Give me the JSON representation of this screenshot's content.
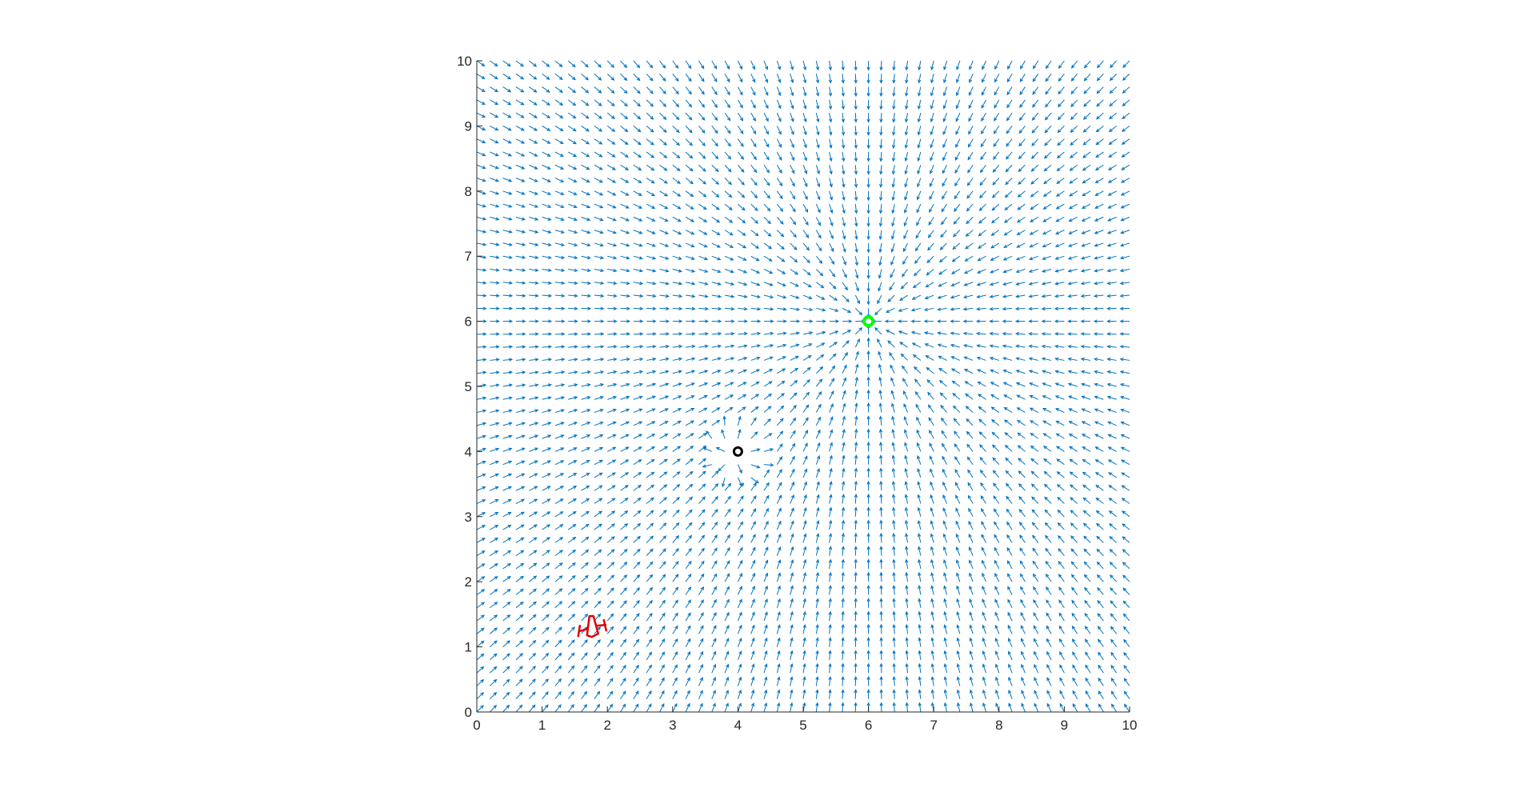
{
  "chart_data": {
    "type": "quiver",
    "title": "",
    "xlabel": "",
    "ylabel": "",
    "xlim": [
      0,
      10
    ],
    "ylim": [
      0,
      10
    ],
    "xticks": [
      0,
      1,
      2,
      3,
      4,
      5,
      6,
      7,
      8,
      9,
      10
    ],
    "yticks": [
      0,
      1,
      2,
      3,
      4,
      5,
      6,
      7,
      8,
      9,
      10
    ],
    "xtick_labels": [
      "0",
      "1",
      "2",
      "3",
      "4",
      "5",
      "6",
      "7",
      "8",
      "9",
      "10"
    ],
    "ytick_labels": [
      "0",
      "1",
      "2",
      "3",
      "4",
      "5",
      "6",
      "7",
      "8",
      "9",
      "10"
    ],
    "grid": false,
    "box": "off",
    "vector_field": {
      "grid_start": 0,
      "grid_end": 10,
      "grid_step": 0.2,
      "description": "attractive potential toward goal, repulsive near obstacle",
      "goal": [
        6,
        6
      ],
      "obstacle": [
        4,
        4
      ],
      "obstacle_influence_radius": 0.5,
      "arrow_length": 0.14,
      "color": "#0072BD"
    },
    "markers": [
      {
        "name": "goal",
        "x": 6,
        "y": 6,
        "color": "#00FF00"
      },
      {
        "name": "obstacle",
        "x": 4,
        "y": 4,
        "color": "#000000"
      }
    ],
    "robot": {
      "x": 1.75,
      "y": 1.3,
      "color": "#E00000"
    },
    "colors": {
      "vectors": "#0072BD",
      "axes": "#262626",
      "goal": "#00FF00",
      "obstacle": "#000000",
      "robot": "#E00000"
    }
  }
}
